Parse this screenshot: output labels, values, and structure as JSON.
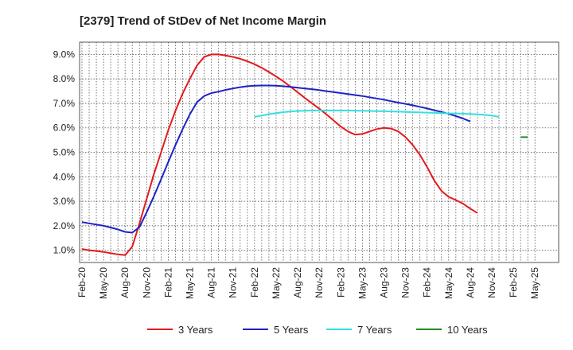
{
  "chart_data": {
    "type": "line",
    "title": "[2379]  Trend of StDev of Net Income Margin",
    "xlabel": "",
    "ylabel": "",
    "x_tick_labels": [
      "Feb-20",
      "May-20",
      "Aug-20",
      "Nov-20",
      "Feb-21",
      "May-21",
      "Aug-21",
      "Nov-21",
      "Feb-22",
      "May-22",
      "Aug-22",
      "Nov-22",
      "Feb-23",
      "May-23",
      "Aug-23",
      "Nov-23",
      "Feb-24",
      "May-24",
      "Aug-24",
      "Nov-24",
      "Feb-25",
      "May-25"
    ],
    "y_tick_labels": [
      "1.0%",
      "2.0%",
      "3.0%",
      "4.0%",
      "5.0%",
      "6.0%",
      "7.0%",
      "8.0%",
      "9.0%"
    ],
    "ylim": [
      0.5,
      9.5
    ],
    "y_unit": "%",
    "grid": true,
    "legend_position": "bottom",
    "series": [
      {
        "name": "3 Years",
        "color": "#e41a1c",
        "x_index": [
          0,
          1,
          2,
          3,
          4,
          5,
          6,
          7,
          8,
          9,
          10,
          11,
          12,
          13,
          14,
          15,
          16,
          17,
          18,
          19,
          20,
          21,
          22,
          23,
          24,
          25,
          26,
          27,
          28,
          29,
          30,
          31,
          32,
          33,
          34,
          35,
          36,
          37,
          38,
          39,
          40,
          41,
          42,
          43,
          44,
          45,
          46,
          47,
          48,
          49,
          50,
          51,
          52,
          53,
          54,
          55,
          56,
          57,
          58,
          59,
          60,
          61,
          62,
          63
        ],
        "values": [
          1.05,
          1.0,
          0.97,
          0.93,
          0.88,
          0.83,
          0.8,
          1.15,
          2.1,
          3.1,
          4.1,
          5.0,
          5.9,
          6.7,
          7.4,
          8.0,
          8.55,
          8.9,
          9.0,
          9.0,
          8.95,
          8.9,
          8.82,
          8.72,
          8.6,
          8.45,
          8.28,
          8.1,
          7.9,
          7.68,
          7.45,
          7.22,
          7.0,
          6.78,
          6.55,
          6.3,
          6.05,
          5.85,
          5.72,
          5.75,
          5.85,
          5.95,
          6.0,
          5.97,
          5.85,
          5.62,
          5.3,
          4.9,
          4.4,
          3.85,
          3.42,
          3.18,
          3.05,
          2.9,
          2.7,
          2.52,
          null,
          null,
          null,
          null,
          null,
          null,
          null,
          null
        ]
      },
      {
        "name": "5 Years",
        "color": "#1d22c8",
        "x_index": [
          0,
          1,
          2,
          3,
          4,
          5,
          6,
          7,
          8,
          9,
          10,
          11,
          12,
          13,
          14,
          15,
          16,
          17,
          18,
          19,
          20,
          21,
          22,
          23,
          24,
          25,
          26,
          27,
          28,
          29,
          30,
          31,
          32,
          33,
          34,
          35,
          36,
          37,
          38,
          39,
          40,
          41,
          42,
          43,
          44,
          45,
          46,
          47,
          48,
          49,
          50,
          51,
          52,
          53,
          54,
          55,
          56,
          57,
          58,
          59,
          60,
          61,
          62,
          63
        ],
        "values": [
          2.15,
          2.1,
          2.05,
          2.0,
          1.93,
          1.85,
          1.75,
          1.72,
          1.95,
          2.55,
          3.2,
          3.9,
          4.6,
          5.3,
          5.95,
          6.55,
          7.05,
          7.3,
          7.42,
          7.48,
          7.55,
          7.61,
          7.66,
          7.7,
          7.72,
          7.73,
          7.73,
          7.72,
          7.7,
          7.67,
          7.64,
          7.61,
          7.58,
          7.54,
          7.5,
          7.46,
          7.42,
          7.38,
          7.34,
          7.3,
          7.25,
          7.2,
          7.15,
          7.09,
          7.03,
          6.98,
          6.92,
          6.86,
          6.79,
          6.72,
          6.65,
          6.57,
          6.48,
          6.38,
          6.26,
          null,
          null,
          null,
          null,
          null,
          null,
          null,
          null,
          null
        ]
      },
      {
        "name": "7 Years",
        "color": "#33e0e0",
        "x_index_start": 24,
        "values": [
          6.45,
          6.5,
          6.56,
          6.6,
          6.64,
          6.67,
          6.69,
          6.7,
          6.71,
          6.71,
          6.71,
          6.71,
          6.71,
          6.71,
          6.7,
          6.7,
          6.69,
          6.68,
          6.68,
          6.67,
          6.66,
          6.65,
          6.64,
          6.63,
          6.62,
          6.61,
          6.6,
          6.59,
          6.59,
          6.58,
          6.57,
          6.55,
          6.53,
          6.5,
          6.45
        ]
      },
      {
        "name": "10 Years",
        "color": "#228b22",
        "x_index_start": 61,
        "values": [
          5.62,
          5.62
        ]
      }
    ]
  }
}
